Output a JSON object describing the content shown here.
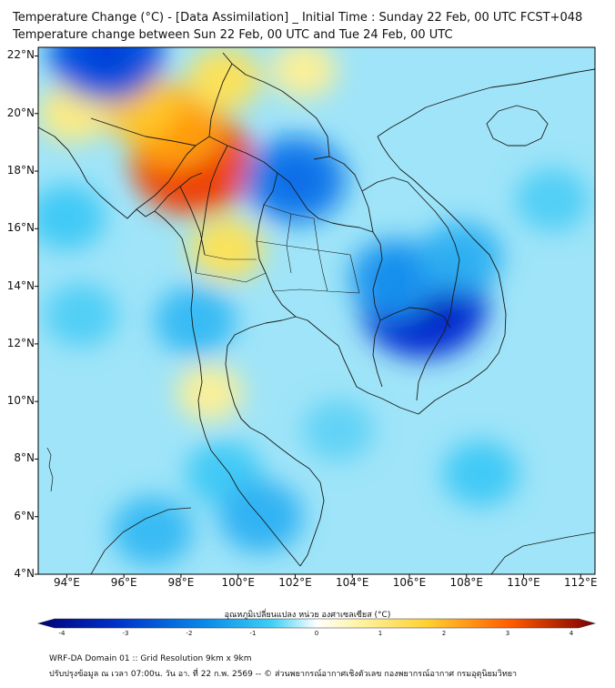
{
  "header": {
    "title_line1": "Temperature Change (°C) - [Data Assimilation] _ Initial Time : Sunday 22 Feb, 00 UTC FCST+048",
    "title_line2": "Temperature change between Sun 22 Feb, 00 UTC and Tue 24 Feb, 00 UTC"
  },
  "map": {
    "lat_ticks": [
      "22°N",
      "20°N",
      "18°N",
      "16°N",
      "14°N",
      "12°N",
      "10°N",
      "8°N",
      "6°N",
      "4°N"
    ],
    "lon_ticks": [
      "94°E",
      "96°E",
      "98°E",
      "100°E",
      "102°E",
      "104°E",
      "106°E",
      "108°E",
      "110°E",
      "112°E"
    ],
    "lat_range": [
      4,
      22.3
    ],
    "lon_range": [
      93,
      112.5
    ],
    "anomalies": [
      {
        "lon": 98.4,
        "lat": 18.3,
        "value": 2.8
      },
      {
        "lon": 97.8,
        "lat": 19.5,
        "value": 1.8
      },
      {
        "lon": 96.5,
        "lat": 20.3,
        "value": 1.3
      },
      {
        "lon": 99.5,
        "lat": 21.2,
        "value": 0.9
      },
      {
        "lon": 102.3,
        "lat": 21.5,
        "value": 0.6
      },
      {
        "lon": 99.6,
        "lat": 15.3,
        "value": 0.9
      },
      {
        "lon": 99.0,
        "lat": 10.3,
        "value": 0.6
      },
      {
        "lon": 94.2,
        "lat": 20.0,
        "value": 0.7
      },
      {
        "lon": 106.5,
        "lat": 13.4,
        "value": -3.0
      },
      {
        "lon": 105.5,
        "lat": 14.3,
        "value": -1.6
      },
      {
        "lon": 107.8,
        "lat": 15.0,
        "value": -1.3
      },
      {
        "lon": 102.0,
        "lat": 17.7,
        "value": -2.0
      },
      {
        "lon": 95.4,
        "lat": 22.1,
        "value": -2.5
      },
      {
        "lon": 94.0,
        "lat": 16.4,
        "value": -1.0
      },
      {
        "lon": 94.5,
        "lat": 13.0,
        "value": -0.9
      },
      {
        "lon": 98.5,
        "lat": 12.8,
        "value": -1.2
      },
      {
        "lon": 99.5,
        "lat": 7.5,
        "value": -1.0
      },
      {
        "lon": 97.0,
        "lat": 5.5,
        "value": -1.2
      },
      {
        "lon": 100.8,
        "lat": 6.0,
        "value": -1.3
      },
      {
        "lon": 103.5,
        "lat": 9.0,
        "value": -0.8
      },
      {
        "lon": 108.5,
        "lat": 7.5,
        "value": -1.0
      },
      {
        "lon": 111.0,
        "lat": 17.0,
        "value": -0.9
      }
    ]
  },
  "colorbar": {
    "label": "อุณหภูมิเปลี่ยนแปลง หน่วย องศาเซลเซียส (°C)",
    "ticks": [
      "-4",
      "-3",
      "-2",
      "-1",
      "0",
      "1",
      "2",
      "3",
      "4"
    ],
    "range": [
      -4,
      4
    ],
    "colors": {
      "cold_extreme": "#00007a",
      "cold": "#0050e6",
      "cool": "#2fc6f0",
      "neutral": "#ffffff",
      "warm": "#ffd84a",
      "hot": "#ff6a00",
      "hot_extreme": "#7a0000"
    }
  },
  "footer": {
    "line1": "WRF-DA Domain 01 :: Grid Resolution 9km x 9km",
    "line2": "ปรับปรุงข้อมูล ณ เวลา 07:00น. วัน อา. ที่ 22 ก.พ. 2569 -- © ส่วนพยากรณ์อากาศเชิงตัวเลข กองพยากรณ์อากาศ กรมอุตุนิยมวิทยา"
  }
}
